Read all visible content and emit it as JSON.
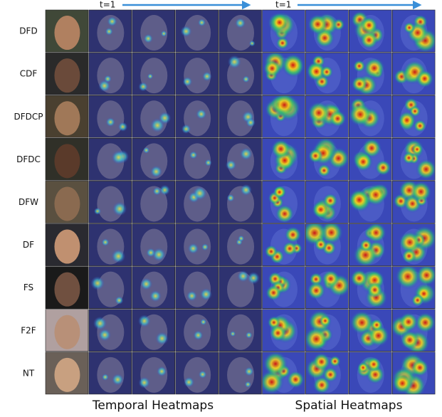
{
  "top": {
    "arrows": [
      {
        "label": "t=1"
      },
      {
        "label": "t=1"
      }
    ]
  },
  "rows": [
    {
      "label": "DFD"
    },
    {
      "label": "CDF"
    },
    {
      "label": "DFDCP"
    },
    {
      "label": "DFDC"
    },
    {
      "label": "DFW"
    },
    {
      "label": "DF"
    },
    {
      "label": "FS"
    },
    {
      "label": "F2F"
    },
    {
      "label": "NT"
    }
  ],
  "footer": {
    "temporal": "Temporal Heatmaps",
    "spatial": "Spatial Heatmaps"
  }
}
